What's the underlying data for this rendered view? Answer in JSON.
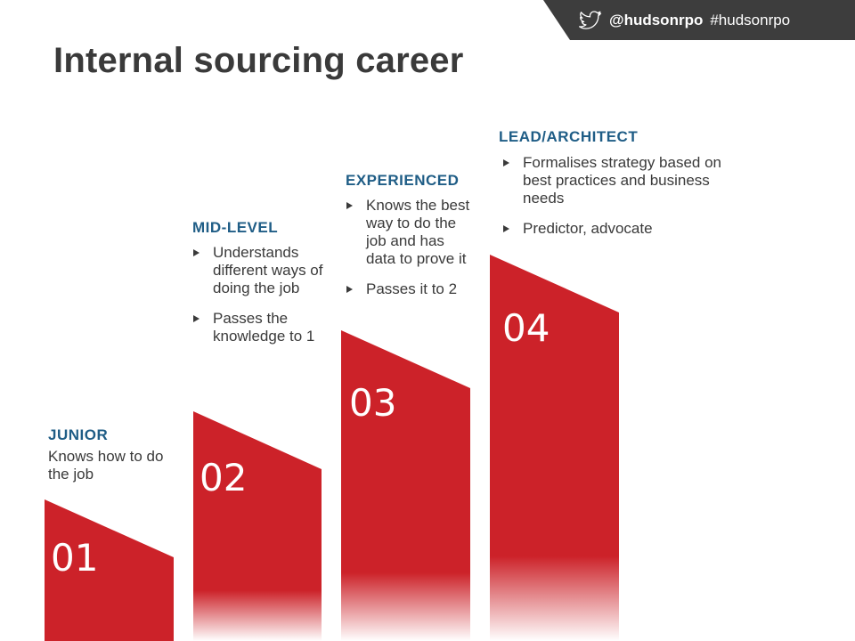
{
  "social": {
    "handle": "@hudsonrpo",
    "hashtag": "#hudsonrpo",
    "icon": "twitter-bird-icon",
    "banner_color": "#3d3d3d"
  },
  "title": "Internal sourcing career",
  "colors": {
    "bar": "#cc2229",
    "heading": "#1f5d86",
    "text": "#3a3a3a"
  },
  "levels": [
    {
      "number": "01",
      "heading": "JUNIOR",
      "text": "Knows how to do the job",
      "bullets": []
    },
    {
      "number": "02",
      "heading": "MID-LEVEL",
      "bullets": [
        "Understands different ways of doing the job",
        "Passes the knowledge to 1"
      ]
    },
    {
      "number": "03",
      "heading": "EXPERIENCED",
      "bullets": [
        "Knows the best way to do the job and has data to prove it",
        "Passes it to 2"
      ]
    },
    {
      "number": "04",
      "heading": "LEAD/ARCHITECT",
      "bullets": [
        "Formalises strategy based on best practices and business needs",
        "Predictor, advocate"
      ]
    }
  ]
}
